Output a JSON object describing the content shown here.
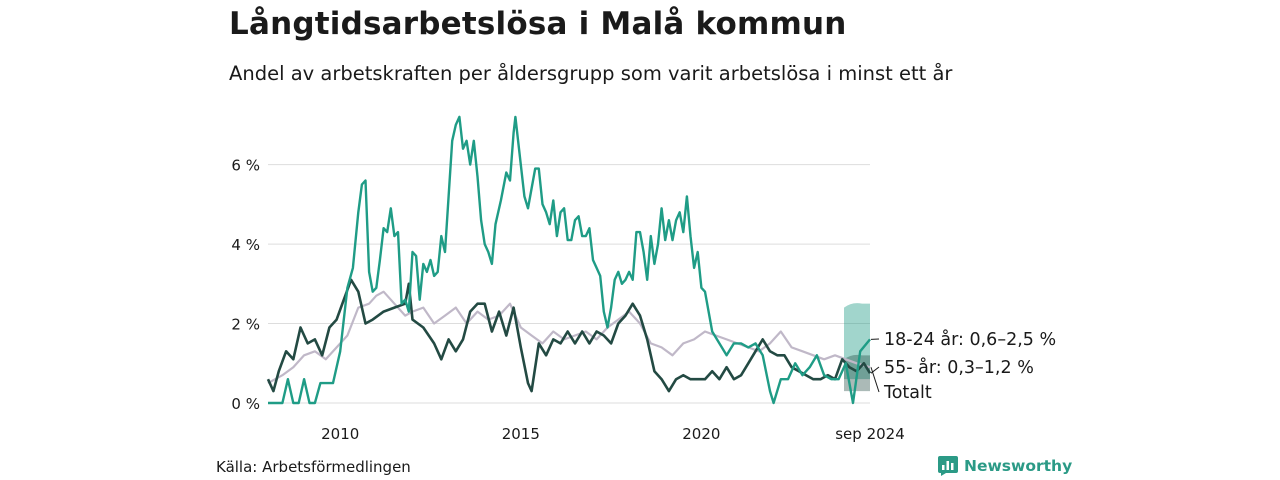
{
  "title": "Långtidsarbetslösa i Malå kommun",
  "subtitle": "Andel av arbetskraften per åldersgrupp som varit arbetslösa i minst ett år",
  "source": "Källa: Arbetsförmedlingen",
  "brand": "Newsworthy",
  "colors": {
    "young": "#1f9c86",
    "old": "#234a43",
    "total": "#c0b8c8",
    "grid": "#dddddd",
    "brand": "#2b9a86"
  },
  "chart_data": {
    "type": "line",
    "xlim": [
      2008.0,
      2024.67
    ],
    "ylim": [
      0,
      7.5
    ],
    "y_ticks": [
      0,
      2,
      4,
      6
    ],
    "y_tick_labels": [
      "0 %",
      "2 %",
      "4 %",
      "6 %"
    ],
    "x_ticks": [
      2010,
      2015,
      2020,
      2024.67
    ],
    "x_tick_labels": [
      "2010",
      "2015",
      "2020",
      "sep 2024"
    ],
    "series": [
      {
        "key": "total",
        "name": "Totalt",
        "label": "Totalt",
        "data": [
          [
            2008.0,
            0.5
          ],
          [
            2008.4,
            0.7
          ],
          [
            2008.7,
            0.9
          ],
          [
            2009.0,
            1.2
          ],
          [
            2009.3,
            1.3
          ],
          [
            2009.6,
            1.1
          ],
          [
            2009.9,
            1.4
          ],
          [
            2010.2,
            1.7
          ],
          [
            2010.5,
            2.4
          ],
          [
            2010.8,
            2.5
          ],
          [
            2011.0,
            2.7
          ],
          [
            2011.2,
            2.8
          ],
          [
            2011.5,
            2.5
          ],
          [
            2011.8,
            2.2
          ],
          [
            2012.0,
            2.3
          ],
          [
            2012.3,
            2.4
          ],
          [
            2012.6,
            2.0
          ],
          [
            2012.9,
            2.2
          ],
          [
            2013.2,
            2.4
          ],
          [
            2013.5,
            2.0
          ],
          [
            2013.8,
            2.3
          ],
          [
            2014.1,
            2.1
          ],
          [
            2014.4,
            2.2
          ],
          [
            2014.7,
            2.5
          ],
          [
            2015.0,
            1.9
          ],
          [
            2015.3,
            1.7
          ],
          [
            2015.6,
            1.5
          ],
          [
            2015.9,
            1.8
          ],
          [
            2016.2,
            1.6
          ],
          [
            2016.5,
            1.7
          ],
          [
            2016.8,
            1.8
          ],
          [
            2017.1,
            1.6
          ],
          [
            2017.4,
            1.9
          ],
          [
            2017.7,
            2.1
          ],
          [
            2018.0,
            2.3
          ],
          [
            2018.3,
            2.0
          ],
          [
            2018.6,
            1.5
          ],
          [
            2018.9,
            1.4
          ],
          [
            2019.2,
            1.2
          ],
          [
            2019.5,
            1.5
          ],
          [
            2019.8,
            1.6
          ],
          [
            2020.1,
            1.8
          ],
          [
            2020.4,
            1.7
          ],
          [
            2020.7,
            1.6
          ],
          [
            2021.0,
            1.5
          ],
          [
            2021.3,
            1.4
          ],
          [
            2021.6,
            1.3
          ],
          [
            2021.9,
            1.5
          ],
          [
            2022.2,
            1.8
          ],
          [
            2022.5,
            1.4
          ],
          [
            2022.8,
            1.3
          ],
          [
            2023.1,
            1.2
          ],
          [
            2023.4,
            1.1
          ],
          [
            2023.7,
            1.2
          ],
          [
            2024.0,
            1.1
          ],
          [
            2024.3,
            1.0
          ],
          [
            2024.67,
            0.9
          ]
        ]
      },
      {
        "key": "old",
        "name": "55- år",
        "label": "55- år: 0,3–1,2 %",
        "data": [
          [
            2008.0,
            0.6
          ],
          [
            2008.15,
            0.3
          ],
          [
            2008.3,
            0.8
          ],
          [
            2008.5,
            1.3
          ],
          [
            2008.7,
            1.1
          ],
          [
            2008.9,
            1.9
          ],
          [
            2009.1,
            1.5
          ],
          [
            2009.3,
            1.6
          ],
          [
            2009.5,
            1.2
          ],
          [
            2009.7,
            1.9
          ],
          [
            2009.9,
            2.1
          ],
          [
            2010.1,
            2.6
          ],
          [
            2010.3,
            3.1
          ],
          [
            2010.5,
            2.8
          ],
          [
            2010.7,
            2.0
          ],
          [
            2010.9,
            2.1
          ],
          [
            2011.2,
            2.3
          ],
          [
            2011.5,
            2.4
          ],
          [
            2011.8,
            2.5
          ],
          [
            2011.9,
            3.0
          ],
          [
            2012.0,
            2.1
          ],
          [
            2012.3,
            1.9
          ],
          [
            2012.6,
            1.5
          ],
          [
            2012.8,
            1.1
          ],
          [
            2013.0,
            1.6
          ],
          [
            2013.2,
            1.3
          ],
          [
            2013.4,
            1.6
          ],
          [
            2013.6,
            2.3
          ],
          [
            2013.8,
            2.5
          ],
          [
            2014.0,
            2.5
          ],
          [
            2014.2,
            1.8
          ],
          [
            2014.4,
            2.3
          ],
          [
            2014.6,
            1.7
          ],
          [
            2014.8,
            2.4
          ],
          [
            2015.0,
            1.4
          ],
          [
            2015.2,
            0.5
          ],
          [
            2015.3,
            0.3
          ],
          [
            2015.5,
            1.5
          ],
          [
            2015.7,
            1.2
          ],
          [
            2015.9,
            1.6
          ],
          [
            2016.1,
            1.5
          ],
          [
            2016.3,
            1.8
          ],
          [
            2016.5,
            1.5
          ],
          [
            2016.7,
            1.8
          ],
          [
            2016.9,
            1.5
          ],
          [
            2017.1,
            1.8
          ],
          [
            2017.3,
            1.7
          ],
          [
            2017.5,
            1.5
          ],
          [
            2017.7,
            2.0
          ],
          [
            2017.9,
            2.2
          ],
          [
            2018.1,
            2.5
          ],
          [
            2018.3,
            2.2
          ],
          [
            2018.5,
            1.6
          ],
          [
            2018.7,
            0.8
          ],
          [
            2018.9,
            0.6
          ],
          [
            2019.1,
            0.3
          ],
          [
            2019.3,
            0.6
          ],
          [
            2019.5,
            0.7
          ],
          [
            2019.7,
            0.6
          ],
          [
            2019.9,
            0.6
          ],
          [
            2020.1,
            0.6
          ],
          [
            2020.3,
            0.8
          ],
          [
            2020.5,
            0.6
          ],
          [
            2020.7,
            0.9
          ],
          [
            2020.9,
            0.6
          ],
          [
            2021.1,
            0.7
          ],
          [
            2021.3,
            1.0
          ],
          [
            2021.5,
            1.3
          ],
          [
            2021.7,
            1.6
          ],
          [
            2021.9,
            1.3
          ],
          [
            2022.1,
            1.2
          ],
          [
            2022.3,
            1.2
          ],
          [
            2022.5,
            0.9
          ],
          [
            2022.7,
            0.8
          ],
          [
            2022.9,
            0.7
          ],
          [
            2023.1,
            0.6
          ],
          [
            2023.3,
            0.6
          ],
          [
            2023.5,
            0.7
          ],
          [
            2023.7,
            0.6
          ],
          [
            2023.9,
            1.1
          ],
          [
            2024.1,
            0.9
          ],
          [
            2024.3,
            0.8
          ],
          [
            2024.5,
            1.0
          ],
          [
            2024.67,
            0.75
          ]
        ]
      },
      {
        "key": "young",
        "name": "18-24 år",
        "label": "18-24 år: 0,6–2,5 %",
        "data": [
          [
            2008.0,
            0.0
          ],
          [
            2008.4,
            0.0
          ],
          [
            2008.55,
            0.6
          ],
          [
            2008.7,
            0.0
          ],
          [
            2008.85,
            0.0
          ],
          [
            2009.0,
            0.6
          ],
          [
            2009.15,
            0.0
          ],
          [
            2009.3,
            0.0
          ],
          [
            2009.45,
            0.5
          ],
          [
            2009.6,
            0.5
          ],
          [
            2009.8,
            0.5
          ],
          [
            2010.0,
            1.3
          ],
          [
            2010.2,
            2.9
          ],
          [
            2010.35,
            3.4
          ],
          [
            2010.5,
            4.8
          ],
          [
            2010.6,
            5.5
          ],
          [
            2010.7,
            5.6
          ],
          [
            2010.8,
            3.3
          ],
          [
            2010.9,
            2.8
          ],
          [
            2011.0,
            2.9
          ],
          [
            2011.1,
            3.6
          ],
          [
            2011.2,
            4.4
          ],
          [
            2011.3,
            4.3
          ],
          [
            2011.4,
            4.9
          ],
          [
            2011.5,
            4.2
          ],
          [
            2011.6,
            4.3
          ],
          [
            2011.7,
            2.5
          ],
          [
            2011.8,
            2.6
          ],
          [
            2011.9,
            2.3
          ],
          [
            2012.0,
            3.8
          ],
          [
            2012.1,
            3.7
          ],
          [
            2012.2,
            2.6
          ],
          [
            2012.3,
            3.5
          ],
          [
            2012.4,
            3.3
          ],
          [
            2012.5,
            3.6
          ],
          [
            2012.6,
            3.2
          ],
          [
            2012.7,
            3.3
          ],
          [
            2012.8,
            4.2
          ],
          [
            2012.9,
            3.8
          ],
          [
            2013.0,
            5.2
          ],
          [
            2013.1,
            6.6
          ],
          [
            2013.2,
            7.0
          ],
          [
            2013.3,
            7.2
          ],
          [
            2013.4,
            6.4
          ],
          [
            2013.5,
            6.6
          ],
          [
            2013.6,
            6.0
          ],
          [
            2013.7,
            6.6
          ],
          [
            2013.8,
            5.7
          ],
          [
            2013.9,
            4.6
          ],
          [
            2014.0,
            4.0
          ],
          [
            2014.1,
            3.8
          ],
          [
            2014.2,
            3.5
          ],
          [
            2014.3,
            4.5
          ],
          [
            2014.45,
            5.1
          ],
          [
            2014.6,
            5.8
          ],
          [
            2014.7,
            5.6
          ],
          [
            2014.8,
            6.8
          ],
          [
            2014.85,
            7.2
          ],
          [
            2014.95,
            6.4
          ],
          [
            2015.1,
            5.2
          ],
          [
            2015.2,
            4.9
          ],
          [
            2015.3,
            5.4
          ],
          [
            2015.4,
            5.9
          ],
          [
            2015.5,
            5.9
          ],
          [
            2015.6,
            5.0
          ],
          [
            2015.7,
            4.8
          ],
          [
            2015.8,
            4.5
          ],
          [
            2015.9,
            5.1
          ],
          [
            2016.0,
            4.2
          ],
          [
            2016.1,
            4.8
          ],
          [
            2016.2,
            4.9
          ],
          [
            2016.3,
            4.1
          ],
          [
            2016.4,
            4.1
          ],
          [
            2016.5,
            4.6
          ],
          [
            2016.6,
            4.7
          ],
          [
            2016.7,
            4.2
          ],
          [
            2016.8,
            4.2
          ],
          [
            2016.9,
            4.4
          ],
          [
            2017.0,
            3.6
          ],
          [
            2017.1,
            3.4
          ],
          [
            2017.2,
            3.2
          ],
          [
            2017.3,
            2.3
          ],
          [
            2017.4,
            1.9
          ],
          [
            2017.5,
            2.4
          ],
          [
            2017.6,
            3.1
          ],
          [
            2017.7,
            3.3
          ],
          [
            2017.8,
            3.0
          ],
          [
            2017.9,
            3.1
          ],
          [
            2018.0,
            3.3
          ],
          [
            2018.1,
            3.1
          ],
          [
            2018.2,
            4.3
          ],
          [
            2018.3,
            4.3
          ],
          [
            2018.4,
            3.8
          ],
          [
            2018.5,
            3.1
          ],
          [
            2018.6,
            4.2
          ],
          [
            2018.7,
            3.5
          ],
          [
            2018.8,
            4.0
          ],
          [
            2018.9,
            4.9
          ],
          [
            2019.0,
            4.1
          ],
          [
            2019.1,
            4.6
          ],
          [
            2019.2,
            4.1
          ],
          [
            2019.3,
            4.6
          ],
          [
            2019.4,
            4.8
          ],
          [
            2019.5,
            4.3
          ],
          [
            2019.6,
            5.2
          ],
          [
            2019.7,
            4.2
          ],
          [
            2019.8,
            3.4
          ],
          [
            2019.9,
            3.8
          ],
          [
            2020.0,
            2.9
          ],
          [
            2020.1,
            2.8
          ],
          [
            2020.3,
            1.8
          ],
          [
            2020.5,
            1.5
          ],
          [
            2020.7,
            1.2
          ],
          [
            2020.9,
            1.5
          ],
          [
            2021.1,
            1.5
          ],
          [
            2021.3,
            1.4
          ],
          [
            2021.5,
            1.5
          ],
          [
            2021.7,
            1.2
          ],
          [
            2021.9,
            0.3
          ],
          [
            2022.0,
            0.0
          ],
          [
            2022.2,
            0.6
          ],
          [
            2022.4,
            0.6
          ],
          [
            2022.6,
            1.0
          ],
          [
            2022.8,
            0.7
          ],
          [
            2023.0,
            0.9
          ],
          [
            2023.2,
            1.2
          ],
          [
            2023.4,
            0.7
          ],
          [
            2023.6,
            0.6
          ],
          [
            2023.8,
            0.6
          ],
          [
            2024.0,
            1.0
          ],
          [
            2024.1,
            0.5
          ],
          [
            2024.2,
            0.0
          ],
          [
            2024.4,
            1.3
          ],
          [
            2024.67,
            1.6
          ]
        ]
      }
    ],
    "intervals": [
      {
        "key": "young",
        "low": 0.6,
        "high": 2.5,
        "x_from": 2023.95,
        "x_to": 2024.67
      },
      {
        "key": "old",
        "low": 0.3,
        "high": 1.2,
        "x_from": 2023.95,
        "x_to": 2024.67
      }
    ]
  }
}
